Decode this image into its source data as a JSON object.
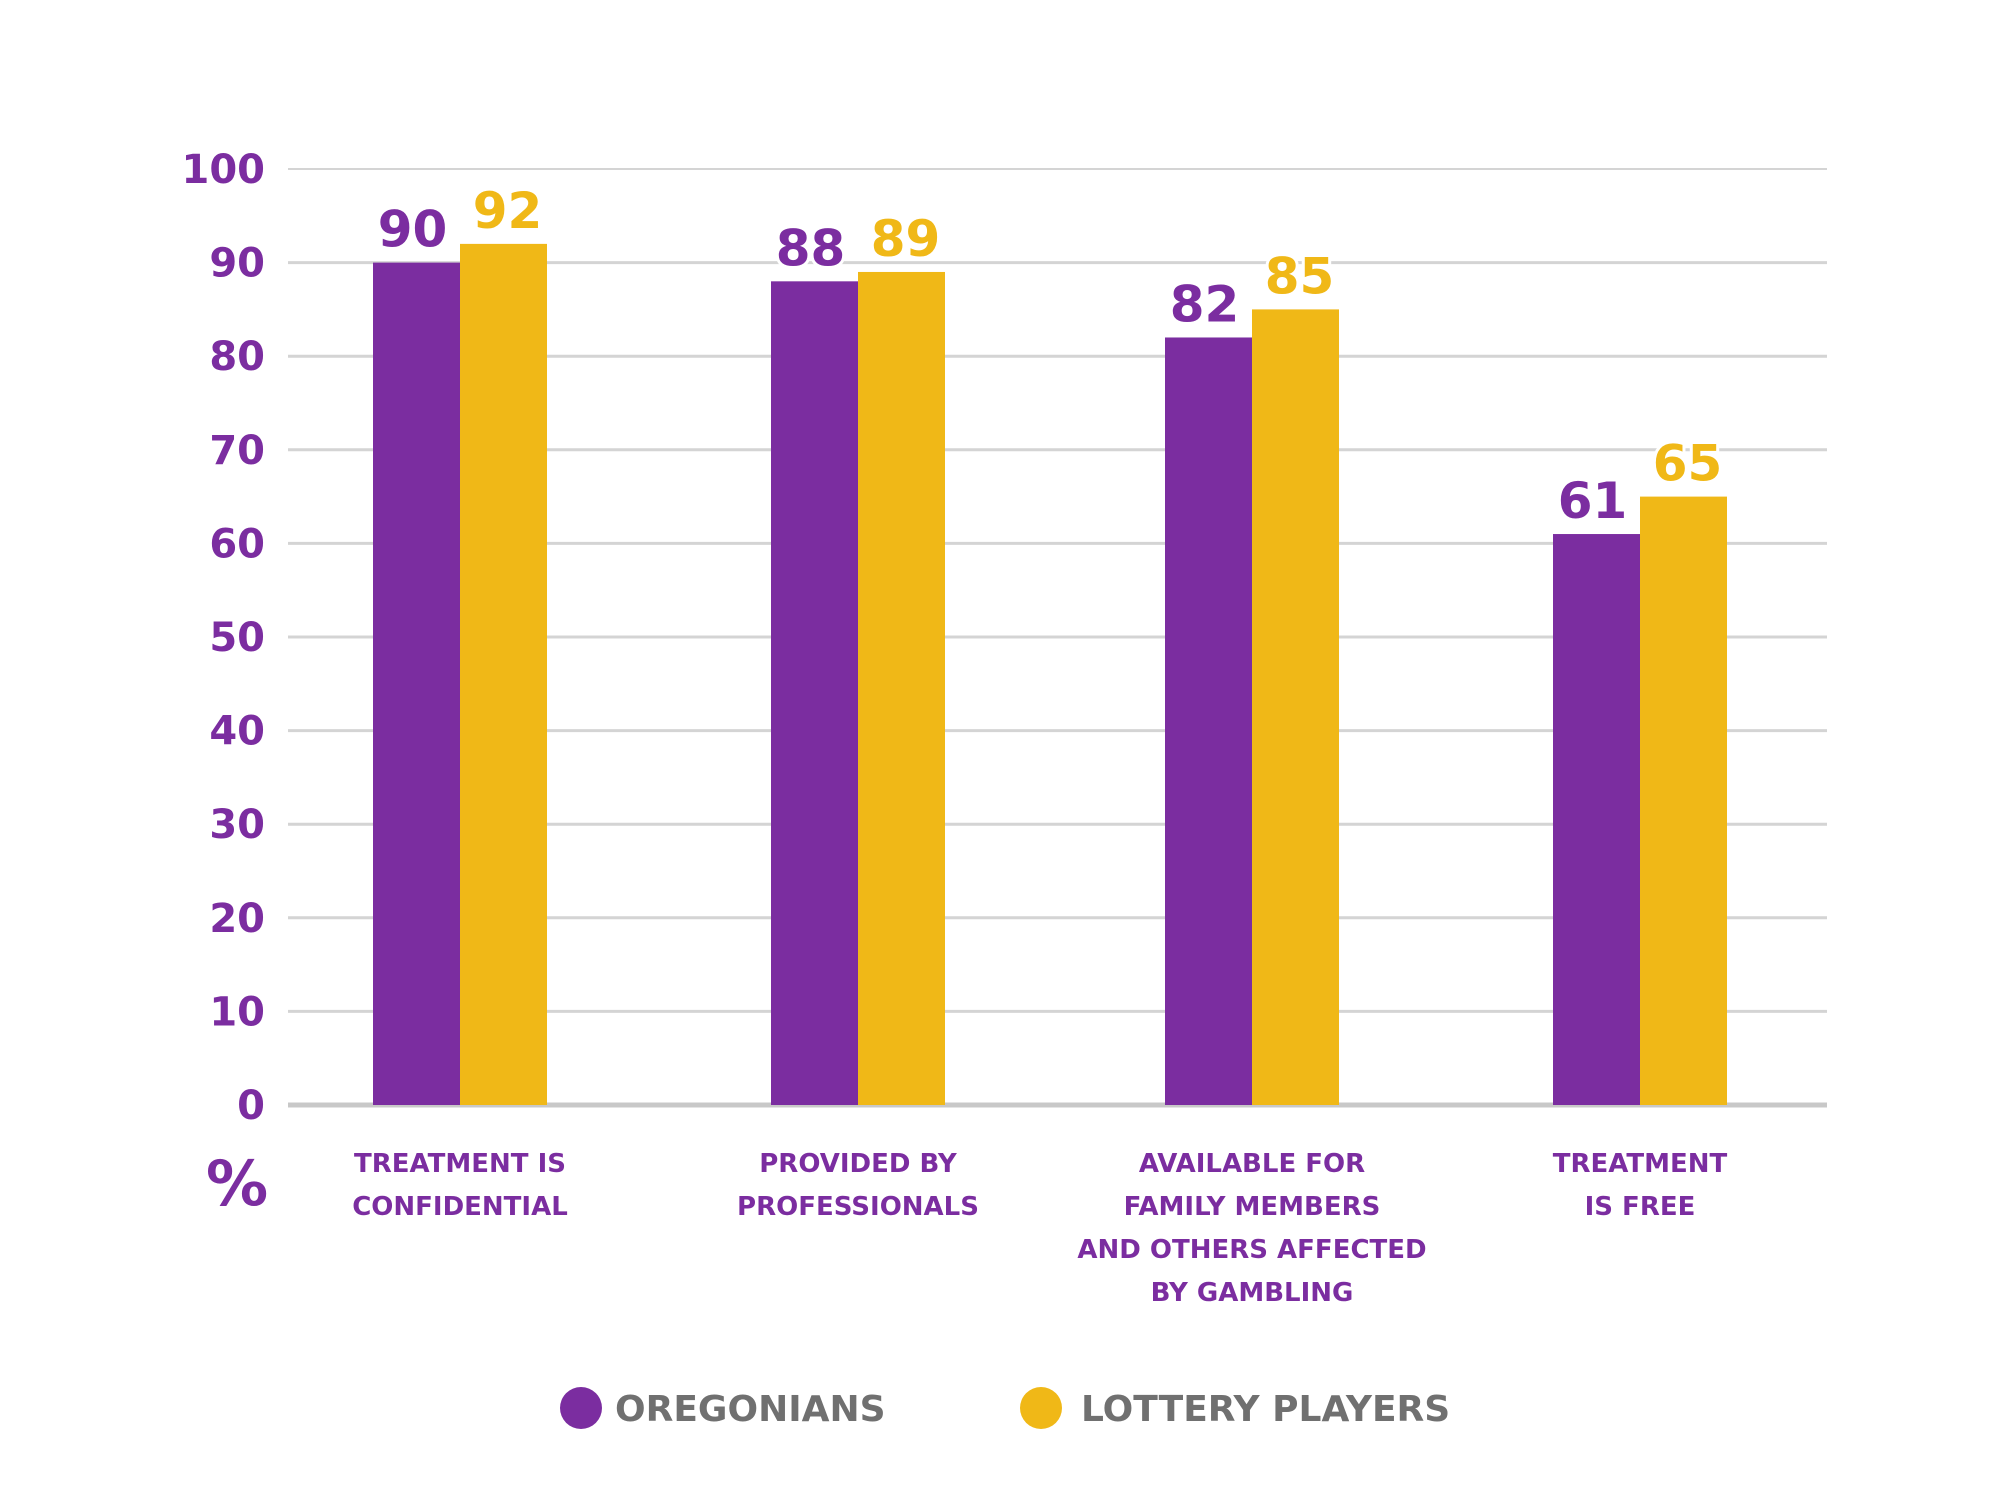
{
  "chart_data": {
    "type": "bar",
    "title": "",
    "xlabel": "",
    "ylabel": "%",
    "ylim": [
      0,
      100
    ],
    "yticks": [
      0,
      10,
      20,
      30,
      40,
      50,
      60,
      70,
      80,
      90,
      100
    ],
    "grid": true,
    "legend_position": "bottom",
    "categories": [
      [
        "TREATMENT IS",
        "CONFIDENTIAL"
      ],
      [
        "PROVIDED BY",
        "PROFESSIONALS"
      ],
      [
        "AVAILABLE FOR",
        "FAMILY MEMBERS",
        "AND OTHERS AFFECTED",
        "BY GAMBLING"
      ],
      [
        "TREATMENT",
        "IS FREE"
      ]
    ],
    "series": [
      {
        "name": "OREGONIANS",
        "color": "#7B2DA0",
        "values": [
          90,
          88,
          82,
          61
        ]
      },
      {
        "name": "LOTTERY PLAYERS",
        "color": "#F0B817",
        "values": [
          92,
          89,
          85,
          65
        ]
      }
    ]
  }
}
